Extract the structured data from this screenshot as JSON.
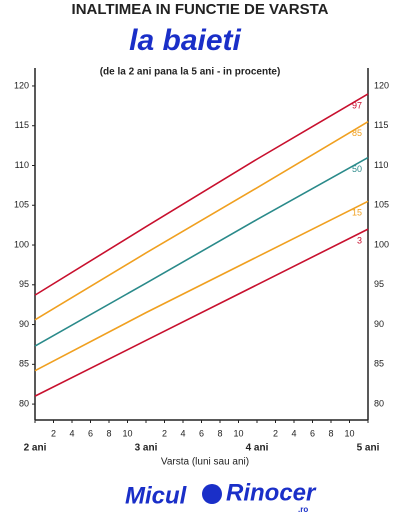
{
  "chart_data": {
    "type": "line",
    "title": "INALTIMEA IN FUNCTIE DE VARSTA",
    "subtitle": "la baieti",
    "note": "(de la 2 ani pana la 5 ani - in procente)",
    "x_label": "Varsta (luni sau ani)",
    "x": [
      24,
      36,
      48,
      60
    ],
    "series": [
      {
        "name": "97",
        "color": "#c8102e",
        "values": [
          93.7,
          102.3,
          110.8,
          119
        ]
      },
      {
        "name": "85",
        "color": "#f0a020",
        "values": [
          90.6,
          99,
          107.2,
          115.5
        ]
      },
      {
        "name": "50",
        "color": "#2a8a8a",
        "values": [
          87.3,
          95.2,
          103.2,
          111
        ]
      },
      {
        "name": "15",
        "color": "#f0a020",
        "values": [
          84.2,
          91.5,
          98.5,
          105.5
        ]
      },
      {
        "name": "3",
        "color": "#c8102e",
        "values": [
          81,
          88,
          95,
          102
        ]
      }
    ],
    "xlim": [
      24,
      60
    ],
    "ylim": [
      78,
      121
    ],
    "yticks": [
      80,
      85,
      90,
      95,
      100,
      105,
      110,
      115,
      120
    ],
    "xticks": [
      {
        "value": 24,
        "label": "2 ani"
      },
      {
        "value": 26,
        "label": "2"
      },
      {
        "value": 28,
        "label": "4"
      },
      {
        "value": 30,
        "label": "6"
      },
      {
        "value": 32,
        "label": "8"
      },
      {
        "value": 34,
        "label": "10"
      },
      {
        "value": 36,
        "label": "3 ani"
      },
      {
        "value": 38,
        "label": "2"
      },
      {
        "value": 40,
        "label": "4"
      },
      {
        "value": 42,
        "label": "6"
      },
      {
        "value": 44,
        "label": "8"
      },
      {
        "value": 46,
        "label": "10"
      },
      {
        "value": 48,
        "label": "4 ani"
      },
      {
        "value": 50,
        "label": "2"
      },
      {
        "value": 52,
        "label": "4"
      },
      {
        "value": 54,
        "label": "6"
      },
      {
        "value": 56,
        "label": "8"
      },
      {
        "value": 58,
        "label": "10"
      },
      {
        "value": 60,
        "label": "5 ani"
      }
    ]
  },
  "logo": {
    "name1": "Micul",
    "name2": "Rinocer",
    "suffix": ".ro"
  }
}
